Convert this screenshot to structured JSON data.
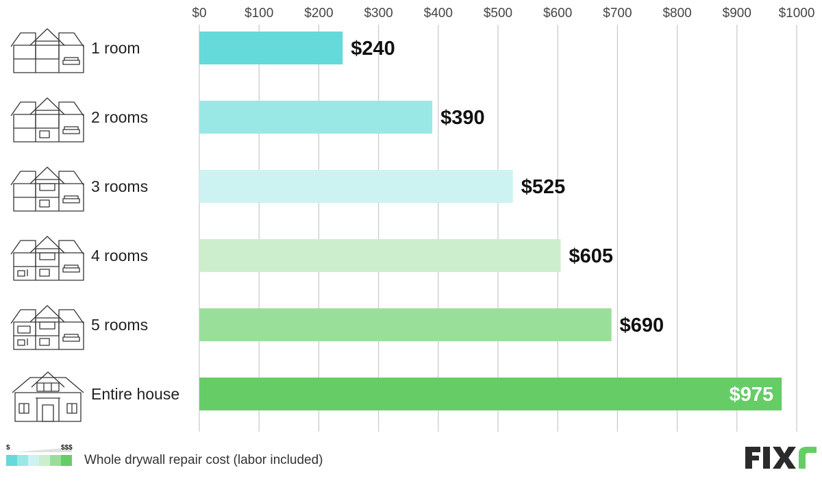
{
  "chart_data": {
    "type": "bar",
    "orientation": "horizontal",
    "categories": [
      "1 room",
      "2 rooms",
      "3 rooms",
      "4 rooms",
      "5 rooms",
      "Entire house"
    ],
    "values": [
      240,
      390,
      525,
      605,
      690,
      975
    ],
    "value_labels": [
      "$240",
      "$390",
      "$525",
      "$605",
      "$690",
      "$975"
    ],
    "colors": [
      "#66d9da",
      "#99e8e6",
      "#ccf3f2",
      "#cdeecd",
      "#99df99",
      "#66cd66"
    ],
    "xlim": [
      0,
      1000
    ],
    "x_ticks": [
      0,
      100,
      200,
      300,
      400,
      500,
      600,
      700,
      800,
      900,
      1000
    ],
    "x_tick_labels": [
      "$0",
      "$100",
      "$200",
      "$300",
      "$400",
      "$500",
      "$600",
      "$700",
      "$800",
      "$900",
      "$1000"
    ],
    "x_axis_position": "top",
    "grid": true,
    "category_icons": [
      "house-1-room-icon",
      "house-2-rooms-icon",
      "house-3-rooms-icon",
      "house-4-rooms-icon",
      "house-5-rooms-icon",
      "house-entire-icon"
    ],
    "title": "",
    "xlabel": "",
    "ylabel": ""
  },
  "legend": {
    "low_label": "$",
    "high_label": "$$$",
    "text": "Whole drywall repair cost (labor included)",
    "ramp_colors": [
      "#66d9da",
      "#99e8e6",
      "#ccf3f2",
      "#cdeecd",
      "#99df99",
      "#66cd66"
    ]
  },
  "brand": {
    "name": "FIXR",
    "dark_color": "#2b2b2b",
    "accent_color": "#66cd66"
  }
}
